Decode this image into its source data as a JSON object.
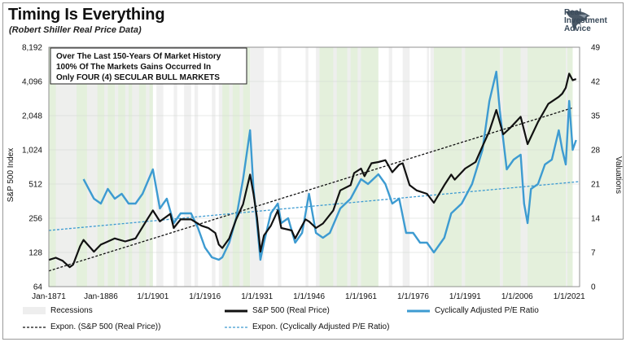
{
  "header": {
    "title": "Timing Is Everything",
    "subtitle": "(Robert Shiller Real Price Data)",
    "logo_lines": [
      "Real",
      "Investment",
      "Advice"
    ]
  },
  "chart_data": {
    "type": "line",
    "annotation": [
      "Over The Last 150-Years Of Market History",
      "100% Of The Markets Gains Occurred In",
      "Only FOUR (4) SECULAR BULL MARKETS"
    ],
    "ylabel": "S&P 500 Index",
    "y2label": "Valuations",
    "yscale": "log2",
    "ylim": [
      64,
      8192
    ],
    "y_ticks": [
      "8,192",
      "4,096",
      "2,048",
      "1,024",
      "512",
      "256",
      "128",
      "64"
    ],
    "y_tick_values": [
      8192,
      4096,
      2048,
      1024,
      512,
      256,
      128,
      64
    ],
    "y2lim": [
      0,
      49
    ],
    "y2_ticks": [
      "49",
      "42",
      "35",
      "28",
      "21",
      "14",
      "7",
      "0"
    ],
    "y2_tick_values": [
      49,
      42,
      35,
      28,
      21,
      14,
      7,
      0
    ],
    "xlim": [
      1871,
      2024
    ],
    "x_ticks": [
      "Jan-1871",
      "Jan-1886",
      "1/1/1901",
      "1/1/1916",
      "1/1/1931",
      "1/1/1946",
      "1/1/1961",
      "1/1/1976",
      "1/1/1991",
      "1/1/2006",
      "1/1/2021"
    ],
    "x_tick_values": [
      1871,
      1886,
      1901,
      1916,
      1931,
      1946,
      1961,
      1976,
      1991,
      2006,
      2021
    ],
    "bull_markets": [
      [
        1871,
        1901
      ],
      [
        1921,
        1929
      ],
      [
        1949,
        1966
      ],
      [
        1982,
        2022
      ]
    ],
    "recessions": [
      [
        1873,
        1879
      ],
      [
        1882,
        1885
      ],
      [
        1887,
        1888
      ],
      [
        1890,
        1891
      ],
      [
        1893,
        1894
      ],
      [
        1895,
        1897
      ],
      [
        1899,
        1900
      ],
      [
        1902,
        1904
      ],
      [
        1907,
        1908
      ],
      [
        1910,
        1912
      ],
      [
        1913,
        1914
      ],
      [
        1918,
        1919
      ],
      [
        1920,
        1921
      ],
      [
        1923,
        1924
      ],
      [
        1926,
        1927
      ],
      [
        1929,
        1933
      ],
      [
        1937,
        1938
      ],
      [
        1945,
        1945.8
      ],
      [
        1948,
        1949
      ],
      [
        1953,
        1954
      ],
      [
        1957,
        1958
      ],
      [
        1960,
        1961
      ],
      [
        1969,
        1970
      ],
      [
        1973,
        1975
      ],
      [
        1980,
        1980.6
      ],
      [
        1981,
        1982
      ],
      [
        1990,
        1991
      ],
      [
        2001,
        2001.9
      ],
      [
        2007,
        2009
      ],
      [
        2020,
        2020.5
      ]
    ],
    "series": [
      {
        "name": "S&P 500 (Real Price)",
        "color": "#111111",
        "axis": "left",
        "x": [
          1871,
          1873,
          1875,
          1877,
          1878,
          1880,
          1881,
          1884,
          1886,
          1890,
          1893,
          1896,
          1899,
          1901,
          1903,
          1906,
          1907,
          1909,
          1912,
          1915,
          1917,
          1919,
          1920,
          1921,
          1923,
          1925,
          1927,
          1929,
          1930,
          1931,
          1932,
          1933,
          1935,
          1937,
          1938,
          1941,
          1942,
          1945,
          1946,
          1948,
          1950,
          1953,
          1955,
          1958,
          1959,
          1961,
          1962,
          1964,
          1966,
          1968,
          1970,
          1972,
          1973,
          1975,
          1977,
          1980,
          1982,
          1985,
          1987,
          1988,
          1991,
          1994,
          1996,
          1998,
          2000,
          2002,
          2004,
          2007,
          2009,
          2012,
          2015,
          2018,
          2019,
          2020,
          2021,
          2022,
          2023
        ],
        "values": [
          110,
          115,
          108,
          95,
          100,
          145,
          165,
          130,
          150,
          170,
          160,
          170,
          240,
          300,
          240,
          280,
          210,
          250,
          250,
          220,
          210,
          190,
          150,
          140,
          170,
          250,
          340,
          620,
          420,
          260,
          130,
          180,
          220,
          300,
          210,
          200,
          170,
          250,
          240,
          210,
          230,
          300,
          450,
          500,
          640,
          700,
          600,
          780,
          800,
          830,
          650,
          760,
          780,
          500,
          450,
          420,
          350,
          500,
          620,
          560,
          700,
          800,
          1100,
          1500,
          2300,
          1400,
          1600,
          2000,
          1150,
          1800,
          2600,
          3000,
          3200,
          3600,
          4800,
          4200,
          4300
        ]
      },
      {
        "name": "Cyclically Adjusted P/E Ratio",
        "color": "#3d9bd1",
        "axis": "right",
        "x": [
          1881,
          1884,
          1886,
          1888,
          1890,
          1892,
          1894,
          1896,
          1898,
          1901,
          1903,
          1905,
          1907,
          1909,
          1912,
          1914,
          1916,
          1918,
          1920,
          1921,
          1923,
          1925,
          1927,
          1928,
          1929,
          1930,
          1931,
          1932,
          1933,
          1935,
          1937,
          1938,
          1940,
          1942,
          1944,
          1946,
          1948,
          1950,
          1952,
          1955,
          1958,
          1961,
          1963,
          1966,
          1968,
          1970,
          1972,
          1974,
          1976,
          1978,
          1980,
          1982,
          1985,
          1987,
          1990,
          1993,
          1996,
          1998,
          2000,
          2001,
          2003,
          2005,
          2007,
          2008,
          2009,
          2010,
          2012,
          2014,
          2016,
          2018,
          2019,
          2020,
          2021,
          2022,
          2023
        ],
        "values": [
          22,
          18,
          17,
          20,
          18,
          19,
          17,
          17,
          19,
          24,
          16,
          18,
          13,
          15,
          15,
          12,
          8,
          6,
          5.5,
          6,
          9,
          14,
          22,
          27,
          32,
          20,
          13,
          5.5,
          9,
          15,
          17,
          13,
          14,
          9,
          11,
          19,
          11,
          10,
          11,
          16,
          18,
          22,
          21,
          23,
          21,
          17,
          18,
          11,
          11,
          9,
          9,
          7,
          10,
          15,
          17,
          21,
          28,
          38,
          44,
          36,
          24,
          26,
          27,
          17,
          13,
          20,
          21,
          25,
          26,
          32,
          28,
          25,
          38,
          28,
          30
        ]
      },
      {
        "name": "Expon. (S&P 500 (Real Price))",
        "color": "#111111",
        "axis": "left",
        "dashed": true,
        "x": [
          1871,
          2022
        ],
        "values": [
          88,
          2400
        ]
      },
      {
        "name": "Expon. (Cyclically Adjusted P/E Ratio)",
        "color": "#3d9bd1",
        "axis": "right",
        "dashed": true,
        "x": [
          1871,
          2024
        ],
        "values": [
          11.5,
          21.5
        ]
      }
    ],
    "legend": [
      {
        "label": "Recessions",
        "kind": "box"
      },
      {
        "label": "S&P 500 (Real Price)",
        "kind": "line",
        "color": "#111111"
      },
      {
        "label": "Cyclically Adjusted P/E Ratio",
        "kind": "line",
        "color": "#3d9bd1"
      },
      {
        "label": "Expon. (S&P 500 (Real Price))",
        "kind": "dash",
        "color": "#111111"
      },
      {
        "label": "Expon. (Cyclically Adjusted P/E Ratio)",
        "kind": "dash",
        "color": "#3d9bd1"
      }
    ],
    "colors": {
      "bull_band": "#e4f0dc",
      "recession_band": "#eeeeee"
    }
  }
}
